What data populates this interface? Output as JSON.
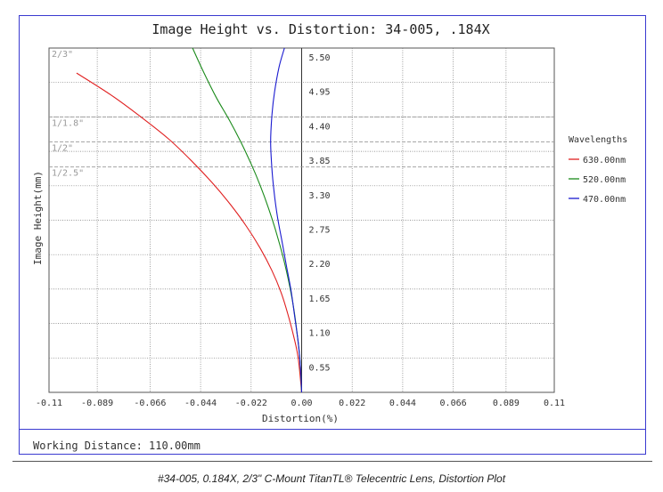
{
  "chart_data": {
    "type": "line",
    "title": "Image Height vs. Distortion: 34-005, .184X",
    "xlabel": "Distortion(%)",
    "ylabel": "Image Height(mm)",
    "xlim": [
      -0.11,
      0.11
    ],
    "ylim": [
      0,
      5.5
    ],
    "x_ticks": [
      -0.11,
      -0.089,
      -0.066,
      -0.044,
      -0.022,
      0.0,
      0.022,
      0.044,
      0.066,
      0.089,
      0.11
    ],
    "x_tick_labels": [
      "-0.11",
      "-0.089",
      "-0.066",
      "-0.044",
      "-0.022",
      "0.00",
      "0.022",
      "0.044",
      "0.066",
      "0.089",
      "0.11"
    ],
    "y_ticks": [
      0.55,
      1.1,
      1.65,
      2.2,
      2.75,
      3.3,
      3.85,
      4.4,
      4.95,
      5.5
    ],
    "y_tick_labels": [
      "0.55",
      "1.10",
      "1.65",
      "2.20",
      "2.75",
      "3.30",
      "3.85",
      "4.40",
      "4.95",
      "5.50"
    ],
    "grid": true,
    "legend_title": "Wavelengths",
    "legend_position": "right",
    "sensor_markers": [
      {
        "label": "2/3\"",
        "y": 5.5
      },
      {
        "label": "1/1.8\"",
        "y": 4.4
      },
      {
        "label": "1/2\"",
        "y": 4.0
      },
      {
        "label": "1/2.5\"",
        "y": 3.6
      }
    ],
    "series": [
      {
        "name": "630.00nm",
        "color": "#e02020",
        "x": [
          0.0,
          -0.0015,
          -0.0035,
          -0.006,
          -0.009,
          -0.013,
          -0.018,
          -0.024,
          -0.031,
          -0.039,
          -0.048,
          -0.058,
          -0.07,
          -0.083,
          -0.098
        ],
        "y": [
          0.0,
          0.55,
          0.9,
          1.25,
          1.6,
          1.95,
          2.3,
          2.65,
          3.0,
          3.35,
          3.7,
          4.05,
          4.4,
          4.75,
          5.1
        ]
      },
      {
        "name": "520.00nm",
        "color": "#1a8a1a",
        "x": [
          0.0,
          -0.0008,
          -0.002,
          -0.0035,
          -0.0055,
          -0.008,
          -0.011,
          -0.0145,
          -0.018,
          -0.022,
          -0.0265,
          -0.0315,
          -0.037,
          -0.0425,
          -0.0475
        ],
        "y": [
          0.0,
          0.55,
          0.95,
          1.35,
          1.75,
          2.15,
          2.55,
          2.95,
          3.3,
          3.65,
          4.0,
          4.35,
          4.7,
          5.1,
          5.5
        ]
      },
      {
        "name": "470.00nm",
        "color": "#1a1ad0",
        "x": [
          0.0,
          -0.0005,
          -0.0015,
          -0.003,
          -0.0045,
          -0.0065,
          -0.0085,
          -0.0105,
          -0.012,
          -0.013,
          -0.0135,
          -0.013,
          -0.0118,
          -0.0098,
          -0.0075
        ],
        "y": [
          0.0,
          0.4,
          0.8,
          1.2,
          1.6,
          2.0,
          2.4,
          2.8,
          3.2,
          3.6,
          4.0,
          4.4,
          4.8,
          5.2,
          5.5
        ]
      }
    ]
  },
  "working_distance": "Working Distance: 110.00mm",
  "caption": "#34-005, 0.184X, 2/3\" C-Mount TitanTL® Telecentric Lens, Distortion Plot"
}
